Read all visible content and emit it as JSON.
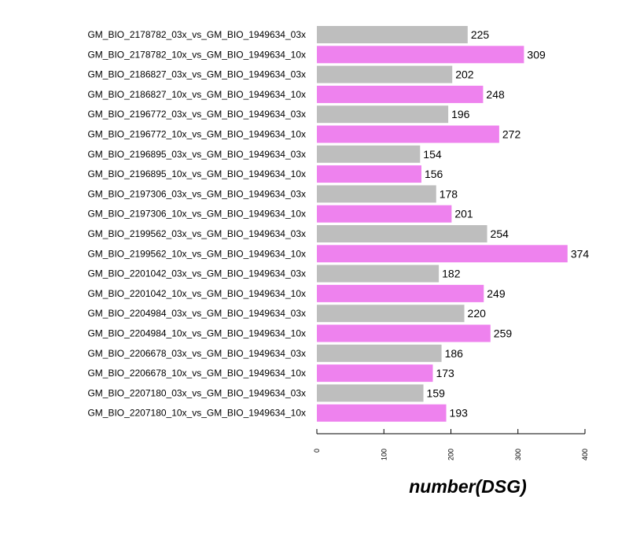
{
  "chart_data": {
    "type": "bar",
    "orientation": "horizontal",
    "categories": [
      "GM_BIO_2178782_03x_vs_GM_BIO_1949634_03x",
      "GM_BIO_2178782_10x_vs_GM_BIO_1949634_10x",
      "GM_BIO_2186827_03x_vs_GM_BIO_1949634_03x",
      "GM_BIO_2186827_10x_vs_GM_BIO_1949634_10x",
      "GM_BIO_2196772_03x_vs_GM_BIO_1949634_03x",
      "GM_BIO_2196772_10x_vs_GM_BIO_1949634_10x",
      "GM_BIO_2196895_03x_vs_GM_BIO_1949634_03x",
      "GM_BIO_2196895_10x_vs_GM_BIO_1949634_10x",
      "GM_BIO_2197306_03x_vs_GM_BIO_1949634_03x",
      "GM_BIO_2197306_10x_vs_GM_BIO_1949634_10x",
      "GM_BIO_2199562_03x_vs_GM_BIO_1949634_03x",
      "GM_BIO_2199562_10x_vs_GM_BIO_1949634_10x",
      "GM_BIO_2201042_03x_vs_GM_BIO_1949634_03x",
      "GM_BIO_2201042_10x_vs_GM_BIO_1949634_10x",
      "GM_BIO_2204984_03x_vs_GM_BIO_1949634_03x",
      "GM_BIO_2204984_10x_vs_GM_BIO_1949634_10x",
      "GM_BIO_2206678_03x_vs_GM_BIO_1949634_03x",
      "GM_BIO_2206678_10x_vs_GM_BIO_1949634_10x",
      "GM_BIO_2207180_03x_vs_GM_BIO_1949634_03x",
      "GM_BIO_2207180_10x_vs_GM_BIO_1949634_10x"
    ],
    "values": [
      225,
      309,
      202,
      248,
      196,
      272,
      154,
      156,
      178,
      201,
      254,
      374,
      182,
      249,
      220,
      259,
      186,
      173,
      159,
      193
    ],
    "bar_colors": [
      "#bebebe",
      "#ee82ee"
    ],
    "title": "",
    "xlabel": "number(DSG)",
    "ylabel": "",
    "xlim": [
      0,
      400
    ],
    "xticks": [
      0,
      100,
      200,
      300,
      400
    ],
    "grid": false,
    "legend": "none"
  }
}
